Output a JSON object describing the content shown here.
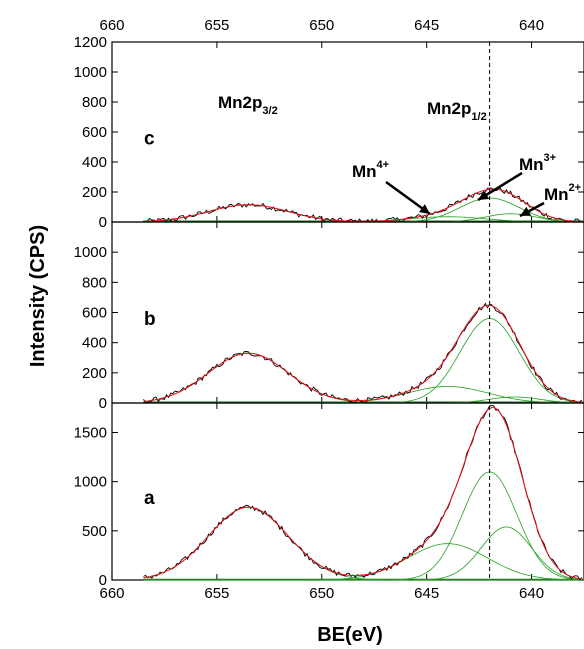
{
  "chart_data": {
    "type": "line",
    "xlabel": "BE(eV)",
    "ylabel": "Intensity (CPS)",
    "x_axis": {
      "range": [
        660,
        637.5
      ],
      "reversed": true,
      "ticks": [
        660,
        655,
        650,
        645,
        640
      ],
      "tick_labels": [
        "660",
        "655",
        "650",
        "645",
        "640"
      ],
      "top_tick_labels": [
        "660",
        "655",
        "650",
        "645",
        "640"
      ]
    },
    "reference_line": {
      "x": 642.0,
      "style": "dashed"
    },
    "colors": {
      "measured": "#000000",
      "envelope": "#e8101a",
      "component": "#21a121",
      "baseline": "#1a6b1a"
    },
    "panels": [
      {
        "id": "c",
        "label": "c",
        "ylim": [
          0,
          1200
        ],
        "yticks": [
          0,
          200,
          400,
          600,
          800,
          1000,
          1200
        ],
        "ytick_labels": [
          "0",
          "200",
          "400",
          "600",
          "800",
          "1000",
          "1200"
        ],
        "annotations": [
          {
            "base": "Mn2p",
            "sub": "3/2",
            "sup": ""
          },
          {
            "base": "Mn2p",
            "sub": "1/2",
            "sup": ""
          },
          {
            "base": "Mn",
            "sub": "",
            "sup": "4+"
          },
          {
            "base": "Mn",
            "sub": "",
            "sup": "3+"
          },
          {
            "base": "Mn",
            "sub": "",
            "sup": "2+"
          }
        ],
        "peaks": [
          {
            "name": "2p3/2",
            "center": 653.5,
            "height": 115,
            "width": 1.9
          },
          {
            "name": "Mn4+",
            "center": 644.0,
            "height": 35,
            "width": 1.8
          },
          {
            "name": "Mn3+",
            "center": 642.0,
            "height": 160,
            "width": 1.4
          },
          {
            "name": "Mn2+",
            "center": 641.0,
            "height": 55,
            "width": 1.2
          }
        ]
      },
      {
        "id": "b",
        "label": "b",
        "ylim": [
          0,
          1200
        ],
        "yticks": [
          0,
          200,
          400,
          600,
          800,
          1000
        ],
        "ytick_labels": [
          "0",
          "200",
          "400",
          "600",
          "800",
          "1000"
        ],
        "annotations": [],
        "peaks": [
          {
            "name": "2p3/2",
            "center": 653.5,
            "height": 330,
            "width": 1.9
          },
          {
            "name": "Mn4+",
            "center": 644.0,
            "height": 110,
            "width": 1.9
          },
          {
            "name": "Mn3+",
            "center": 642.0,
            "height": 560,
            "width": 1.4
          },
          {
            "name": "Mn2+",
            "center": 640.8,
            "height": 40,
            "width": 1.2
          }
        ]
      },
      {
        "id": "a",
        "label": "a",
        "ylim": [
          0,
          1800
        ],
        "yticks": [
          0,
          500,
          1000,
          1500
        ],
        "ytick_labels": [
          "0",
          "500",
          "1000",
          "1500"
        ],
        "annotations": [],
        "peaks": [
          {
            "name": "2p3/2",
            "center": 653.5,
            "height": 740,
            "width": 1.9
          },
          {
            "name": "Mn4+",
            "center": 644.0,
            "height": 370,
            "width": 1.9
          },
          {
            "name": "Mn3+",
            "center": 642.0,
            "height": 1100,
            "width": 1.3
          },
          {
            "name": "Mn2+",
            "center": 641.2,
            "height": 540,
            "width": 1.2
          }
        ]
      }
    ]
  }
}
